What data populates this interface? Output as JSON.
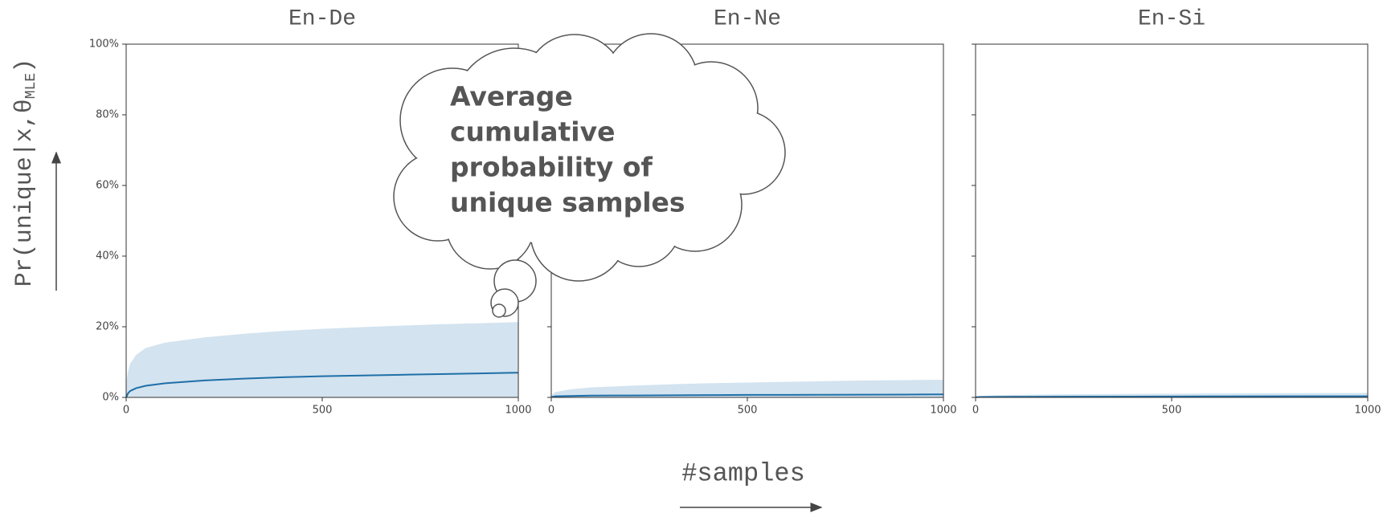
{
  "figure": {
    "ylabel": "Pr(unique|x,θ",
    "ylabel_sub": "MLE",
    "ylabel_end": ")",
    "xlabel": "#samples",
    "annotation": [
      "Average",
      "cumulative",
      "probability of",
      "unique samples"
    ]
  },
  "chart_data": [
    {
      "type": "line",
      "title": "En-De",
      "color": "#1f6fa8",
      "band_color": "#d3e3ef",
      "x": [
        0,
        5,
        10,
        25,
        50,
        100,
        200,
        300,
        400,
        500,
        600,
        700,
        800,
        900,
        1000
      ],
      "values": [
        0,
        1.2,
        1.8,
        2.6,
        3.3,
        4.0,
        4.8,
        5.3,
        5.7,
        6.0,
        6.2,
        6.4,
        6.6,
        6.8,
        7.0
      ],
      "upper": [
        4,
        7.5,
        9.5,
        12,
        14,
        15.5,
        17,
        18,
        18.8,
        19.4,
        19.9,
        20.3,
        20.7,
        21,
        21.3
      ],
      "xlim": [
        0,
        1000
      ],
      "xticks": [
        0,
        500,
        1000
      ],
      "ylim": [
        0,
        100
      ],
      "yticks": [
        {
          "value": 0,
          "label": "0%"
        },
        {
          "value": 20,
          "label": "20%"
        },
        {
          "value": 40,
          "label": "40%"
        },
        {
          "value": 60,
          "label": "60%"
        },
        {
          "value": 80,
          "label": "80%"
        },
        {
          "value": 100,
          "label": "100%"
        }
      ]
    },
    {
      "type": "line",
      "title": "En-Ne",
      "color": "#1f6fa8",
      "band_color": "#d3e3ef",
      "x": [
        0,
        10,
        50,
        100,
        200,
        300,
        400,
        500,
        600,
        700,
        800,
        900,
        1000
      ],
      "values": [
        0.1,
        0.3,
        0.4,
        0.5,
        0.55,
        0.6,
        0.65,
        0.7,
        0.72,
        0.75,
        0.78,
        0.8,
        0.85
      ],
      "upper": [
        0.5,
        1.5,
        2.3,
        2.8,
        3.3,
        3.7,
        4.0,
        4.2,
        4.4,
        4.6,
        4.8,
        4.9,
        5.0
      ],
      "xlim": [
        0,
        1000
      ],
      "xticks": [
        0,
        500,
        1000
      ]
    },
    {
      "type": "line",
      "title": "En-Si",
      "color": "#1f6fa8",
      "band_color": "#d3e3ef",
      "x": [
        0,
        10,
        50,
        100,
        200,
        400,
        600,
        800,
        1000
      ],
      "values": [
        0.05,
        0.1,
        0.15,
        0.18,
        0.2,
        0.24,
        0.27,
        0.3,
        0.32
      ],
      "upper": [
        0.2,
        0.4,
        0.6,
        0.7,
        0.85,
        1.0,
        1.1,
        1.2,
        1.25
      ],
      "xlim": [
        0,
        1000
      ],
      "xticks": [
        0,
        500,
        1000
      ]
    }
  ]
}
